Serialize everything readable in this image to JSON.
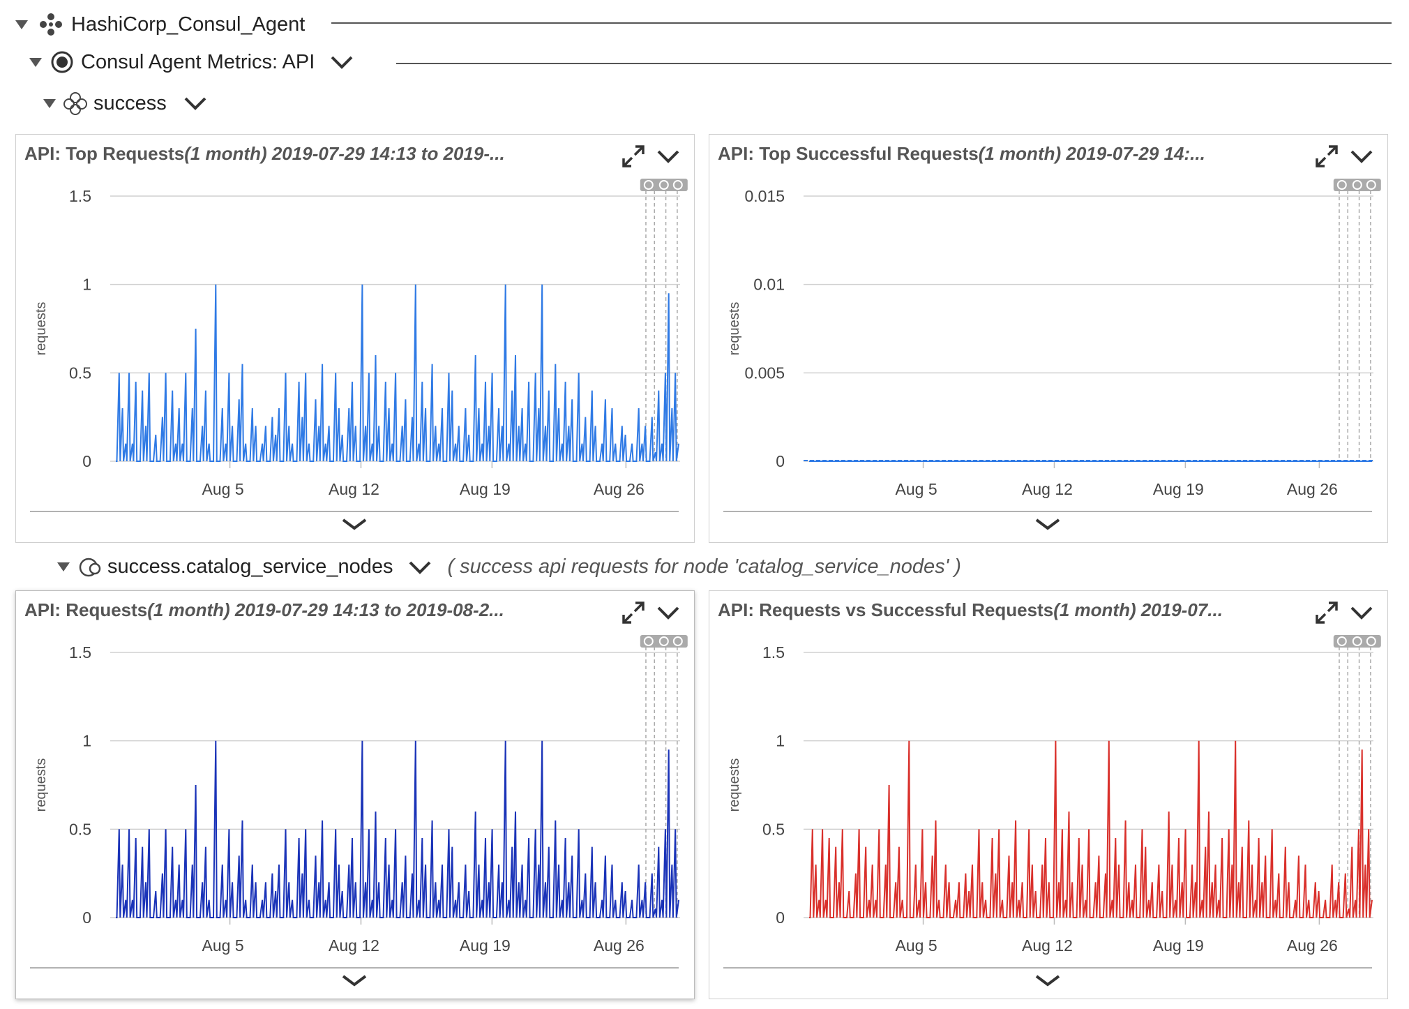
{
  "tree": {
    "root": {
      "label": "HashiCorp_Consul_Agent"
    },
    "datasource": {
      "label": "Consul Agent Metrics: API"
    },
    "group": {
      "label": "success"
    },
    "instance": {
      "label": "success.catalog_service_nodes",
      "description": "( success api requests for node 'catalog_service_nodes' )"
    }
  },
  "panels": [
    {
      "title_main": "API: Top Requests",
      "title_range": "(1 month) 2019-07-29 14:13 to 2019-...",
      "chart_data": {
        "type": "line",
        "title": "API: Top Requests(1 month) 2019-07-29 14:13 to 2019-...",
        "ylabel": "requests",
        "ylim": [
          0,
          1.5
        ],
        "yticks": [
          "1.5",
          "1",
          "0.5",
          "0"
        ],
        "xticks": [
          "Aug 5",
          "Aug 12",
          "Aug 19",
          "Aug 26"
        ],
        "color": "#2f7ae5",
        "series": [
          {
            "values": [
              0,
              0.5,
              0.3,
              0.1,
              0.5,
              0.1,
              0.45,
              0,
              0.4,
              0.2,
              0.5,
              0,
              0.15,
              0,
              0.25,
              0.5,
              0,
              0.4,
              0.1,
              0.3,
              0.1,
              0.5,
              0,
              0.3,
              0.75,
              0,
              0.2,
              0.4,
              0.1,
              0,
              1.0,
              0,
              0.3,
              0.1,
              0.5,
              0.2,
              0,
              0.35,
              0.55,
              0.1,
              0,
              0.3,
              0.2,
              0,
              0.1,
              0.2,
              0,
              0.25,
              0.15,
              0.3,
              0,
              0.5,
              0.2,
              0.1,
              0,
              0.45,
              0.25,
              0.5,
              0.1,
              0,
              0.35,
              0.2,
              0.55,
              0.1,
              0.2,
              0,
              0.5,
              0.3,
              0.15,
              0,
              0.3,
              0.45,
              0.2,
              0,
              1.0,
              0.2,
              0.5,
              0.1,
              0.6,
              0.2,
              0,
              0.45,
              0.3,
              0.1,
              0.5,
              0,
              0.2,
              0.35,
              0,
              0.25,
              1.0,
              0.1,
              0.45,
              0.3,
              0,
              0.55,
              0.2,
              0.1,
              0.3,
              0,
              0.5,
              0.4,
              0.1,
              0.2,
              0,
              0.3,
              0.15,
              0,
              0.6,
              0.3,
              0.1,
              0.45,
              0.2,
              0.5,
              0,
              0.3,
              0.2,
              1.0,
              0.1,
              0.4,
              0.6,
              0.2,
              0.3,
              0.1,
              0.45,
              0,
              0.5,
              0.3,
              1.0,
              0.2,
              0.4,
              0,
              0.55,
              0.3,
              0.1,
              0.45,
              0.2,
              0.35,
              0,
              0.5,
              0.1,
              0.25,
              0,
              0.4,
              0.2,
              0,
              0.1,
              0.35,
              0,
              0.3,
              0.1,
              0,
              0.2,
              0.15,
              0,
              0.1,
              0,
              0.3,
              0.1,
              0.2,
              0,
              0.25,
              0.05,
              0.4,
              0.1,
              0.5,
              0.95,
              0.3,
              0.5,
              0.1
            ]
          }
        ]
      }
    },
    {
      "title_main": "API: Top Successful Requests",
      "title_range": "(1 month) 2019-07-29 14:...",
      "chart_data": {
        "type": "line",
        "title": "API: Top Successful Requests(1 month) 2019-07-29 14:...",
        "ylabel": "requests",
        "ylim": [
          0,
          0.015
        ],
        "yticks": [
          "0.015",
          "0.01",
          "0.005",
          "0"
        ],
        "xticks": [
          "Aug 5",
          "Aug 12",
          "Aug 19",
          "Aug 26"
        ],
        "color": "#2f7ae5",
        "series": [
          {
            "values": [
              0,
              0,
              0,
              0,
              0,
              0,
              0,
              0,
              0,
              0,
              0,
              0,
              0,
              0,
              0,
              0,
              0,
              0,
              0,
              0,
              0,
              0,
              0,
              0,
              0,
              0,
              0,
              0,
              0,
              0,
              0,
              0,
              0,
              0,
              0,
              0,
              0,
              0,
              0,
              0
            ]
          }
        ]
      }
    },
    {
      "title_main": "API: Requests",
      "title_range": "(1 month) 2019-07-29 14:13 to 2019-08-2...",
      "chart_data": {
        "type": "line",
        "title": "API: Requests(1 month) 2019-07-29 14:13 to 2019-08-2...",
        "ylabel": "requests",
        "ylim": [
          0,
          1.5
        ],
        "yticks": [
          "1.5",
          "1",
          "0.5",
          "0"
        ],
        "xticks": [
          "Aug 5",
          "Aug 12",
          "Aug 19",
          "Aug 26"
        ],
        "color": "#1a33b8",
        "series": [
          {
            "values": [
              0,
              0.5,
              0.3,
              0.1,
              0.5,
              0.1,
              0.45,
              0,
              0.4,
              0.2,
              0.5,
              0,
              0.15,
              0,
              0.25,
              0.5,
              0,
              0.4,
              0.1,
              0.3,
              0.1,
              0.5,
              0,
              0.3,
              0.75,
              0,
              0.2,
              0.4,
              0.1,
              0,
              1.0,
              0,
              0.3,
              0.1,
              0.5,
              0.2,
              0,
              0.35,
              0.55,
              0.1,
              0,
              0.3,
              0.2,
              0,
              0.1,
              0.2,
              0,
              0.25,
              0.15,
              0.3,
              0,
              0.5,
              0.2,
              0.1,
              0,
              0.45,
              0.25,
              0.5,
              0.1,
              0,
              0.35,
              0.2,
              0.55,
              0.1,
              0.2,
              0,
              0.5,
              0.3,
              0.15,
              0,
              0.3,
              0.45,
              0.2,
              0,
              1.0,
              0.2,
              0.5,
              0.1,
              0.6,
              0.2,
              0,
              0.45,
              0.3,
              0.1,
              0.5,
              0,
              0.2,
              0.35,
              0,
              0.25,
              1.0,
              0.1,
              0.45,
              0.3,
              0,
              0.55,
              0.2,
              0.1,
              0.3,
              0,
              0.5,
              0.4,
              0.1,
              0.2,
              0,
              0.3,
              0.15,
              0,
              0.6,
              0.3,
              0.1,
              0.45,
              0.2,
              0.5,
              0,
              0.3,
              0.2,
              1.0,
              0.1,
              0.4,
              0.6,
              0.2,
              0.3,
              0.1,
              0.45,
              0,
              0.5,
              0.3,
              1.0,
              0.2,
              0.4,
              0,
              0.55,
              0.3,
              0.1,
              0.45,
              0.2,
              0.35,
              0,
              0.5,
              0.1,
              0.25,
              0,
              0.4,
              0.2,
              0,
              0.1,
              0.35,
              0,
              0.3,
              0.1,
              0,
              0.2,
              0.15,
              0,
              0.1,
              0,
              0.3,
              0.1,
              0.2,
              0,
              0.25,
              0.05,
              0.4,
              0.1,
              0.5,
              0.95,
              0.3,
              0.5,
              0.1
            ]
          }
        ]
      }
    },
    {
      "title_main": "API: Requests vs Successful Requests",
      "title_range": "(1 month) 2019-07...",
      "chart_data": {
        "type": "line",
        "title": "API: Requests vs Successful Requests(1 month) 2019-07...",
        "ylabel": "requests",
        "ylim": [
          0,
          1.5
        ],
        "yticks": [
          "1.5",
          "1",
          "0.5",
          "0"
        ],
        "xticks": [
          "Aug 5",
          "Aug 12",
          "Aug 19",
          "Aug 26"
        ],
        "color": "#d9302b",
        "series": [
          {
            "values": [
              0,
              0.5,
              0.3,
              0.1,
              0.5,
              0.1,
              0.45,
              0,
              0.4,
              0.2,
              0.5,
              0,
              0.15,
              0,
              0.25,
              0.5,
              0,
              0.4,
              0.1,
              0.3,
              0.1,
              0.5,
              0,
              0.3,
              0.75,
              0,
              0.2,
              0.4,
              0.1,
              0,
              1.0,
              0,
              0.3,
              0.1,
              0.5,
              0.2,
              0,
              0.35,
              0.55,
              0.1,
              0,
              0.3,
              0.2,
              0,
              0.1,
              0.2,
              0,
              0.25,
              0.15,
              0.3,
              0,
              0.5,
              0.2,
              0.1,
              0,
              0.45,
              0.25,
              0.5,
              0.1,
              0,
              0.35,
              0.2,
              0.55,
              0.1,
              0.2,
              0,
              0.5,
              0.3,
              0.15,
              0,
              0.3,
              0.45,
              0.2,
              0,
              1.0,
              0.2,
              0.5,
              0.1,
              0.6,
              0.2,
              0,
              0.45,
              0.3,
              0.1,
              0.5,
              0,
              0.2,
              0.35,
              0,
              0.25,
              1.0,
              0.1,
              0.45,
              0.3,
              0,
              0.55,
              0.2,
              0.1,
              0.3,
              0,
              0.5,
              0.4,
              0.1,
              0.2,
              0,
              0.3,
              0.15,
              0,
              0.6,
              0.3,
              0.1,
              0.45,
              0.2,
              0.5,
              0,
              0.3,
              0.2,
              1.0,
              0.1,
              0.4,
              0.6,
              0.2,
              0.3,
              0.1,
              0.45,
              0,
              0.5,
              0.3,
              1.0,
              0.2,
              0.4,
              0,
              0.55,
              0.3,
              0.1,
              0.45,
              0.2,
              0.35,
              0,
              0.5,
              0.1,
              0.25,
              0,
              0.4,
              0.2,
              0,
              0.1,
              0.35,
              0,
              0.3,
              0.1,
              0,
              0.2,
              0.15,
              0,
              0.1,
              0,
              0.3,
              0.1,
              0.2,
              0,
              0.25,
              0.05,
              0.4,
              0.1,
              0.5,
              0.95,
              0.3,
              0.5,
              0.1
            ]
          }
        ]
      }
    }
  ]
}
